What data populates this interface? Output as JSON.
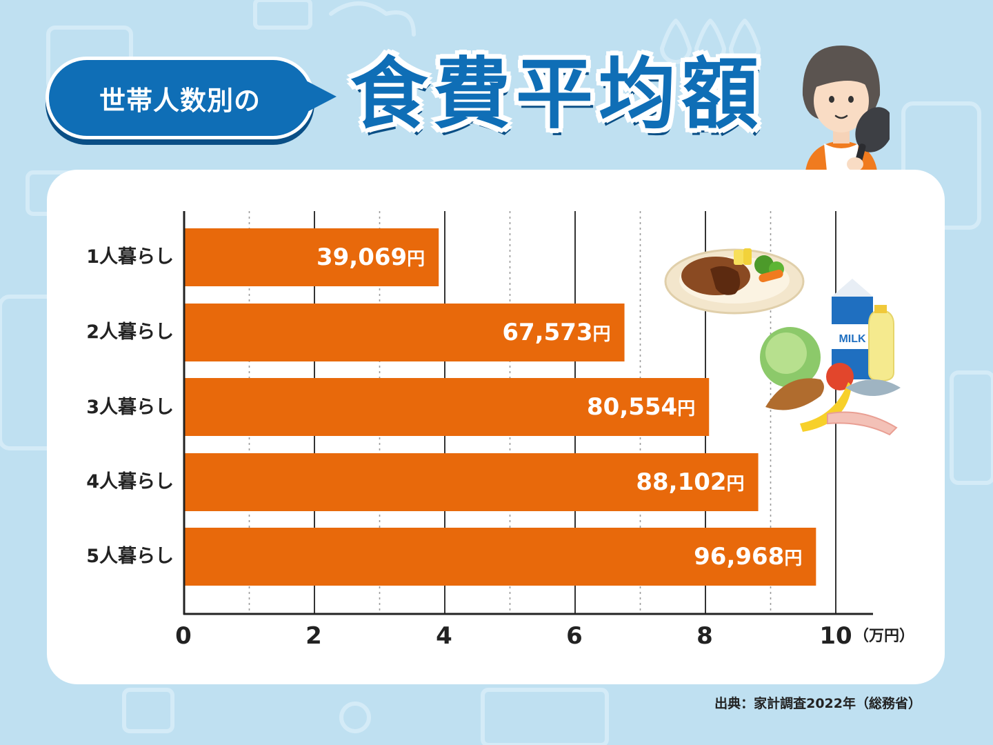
{
  "header": {
    "bubble_text": "世帯人数別の",
    "title": "食費平均額"
  },
  "colors": {
    "background": "#bfe0f1",
    "bar": "#e8690b",
    "title_blue": "#0f6eb6"
  },
  "chart_data": {
    "type": "bar",
    "orientation": "horizontal",
    "categories": [
      "1人暮らし",
      "2人暮らし",
      "3人暮らし",
      "4人暮らし",
      "5人暮らし"
    ],
    "values": [
      39069,
      67573,
      80554,
      88102,
      96968
    ],
    "value_labels": [
      "39,069",
      "67,573",
      "80,554",
      "88,102",
      "96,968"
    ],
    "value_unit": "円",
    "xlim": [
      0,
      10
    ],
    "x_ticks": [
      "0",
      "2",
      "4",
      "6",
      "8",
      "10"
    ],
    "x_unit": "（万円）",
    "grid": true
  },
  "source": "出典：家計調査2022年（総務省）",
  "illustrations": {
    "person": "woman-with-frying-pan",
    "food_plate": "hamburg-steak-plate",
    "groceries": "milk-lettuce-bread-fish-banana-bacon",
    "milk_label": "MILK"
  }
}
